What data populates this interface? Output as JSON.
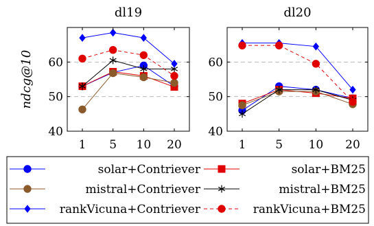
{
  "chart_data": [
    {
      "type": "line",
      "title": "dl19",
      "ylabel": "ndcg@10",
      "xlabel": "",
      "categories": [
        "1",
        "5",
        "10",
        "20"
      ],
      "ylim": [
        40,
        70
      ],
      "yticks": [
        40,
        50,
        60
      ],
      "grid": "horizontal dashed",
      "series": [
        {
          "name": "solar+Contriever",
          "values": [
            53.0,
            57.0,
            59.0,
            53.0
          ],
          "color": "#0000ff",
          "marker": "circle",
          "dash": false
        },
        {
          "name": "solar+BM25",
          "values": [
            53.0,
            57.2,
            56.0,
            52.8
          ],
          "color": "#e00000",
          "marker": "square",
          "dash": false
        },
        {
          "name": "mistral+Contriever",
          "values": [
            46.3,
            56.8,
            55.6,
            54.0
          ],
          "color": "#8b5a2b",
          "marker": "circle",
          "dash": false
        },
        {
          "name": "mistral+BM25",
          "values": [
            53.0,
            60.5,
            58.0,
            58.0
          ],
          "color": "#000000",
          "marker": "star",
          "dash": false
        },
        {
          "name": "rankVicuna+Contriever",
          "values": [
            67.0,
            68.5,
            67.0,
            59.5
          ],
          "color": "#0000ff",
          "marker": "diamond",
          "dash": false
        },
        {
          "name": "rankVicuna+BM25",
          "values": [
            61.0,
            63.5,
            62.0,
            56.0
          ],
          "color": "#e00000",
          "marker": "circle",
          "dash": true
        }
      ]
    },
    {
      "type": "line",
      "title": "dl20",
      "ylabel": "",
      "xlabel": "",
      "categories": [
        "1",
        "5",
        "10",
        "20"
      ],
      "ylim": [
        40,
        70
      ],
      "yticks": [
        40,
        50,
        60
      ],
      "grid": "horizontal dashed",
      "series": [
        {
          "name": "solar+Contriever",
          "values": [
            46.0,
            53.0,
            52.0,
            49.5
          ],
          "color": "#0000ff",
          "marker": "circle",
          "dash": false
        },
        {
          "name": "solar+BM25",
          "values": [
            48.0,
            52.0,
            51.0,
            49.5
          ],
          "color": "#e00000",
          "marker": "square",
          "dash": false
        },
        {
          "name": "mistral+Contriever",
          "values": [
            47.5,
            51.5,
            51.5,
            47.8
          ],
          "color": "#8b5a2b",
          "marker": "circle",
          "dash": false
        },
        {
          "name": "mistral+BM25",
          "values": [
            45.0,
            52.0,
            52.0,
            49.0
          ],
          "color": "#000000",
          "marker": "star",
          "dash": false
        },
        {
          "name": "rankVicuna+Contriever",
          "values": [
            65.5,
            65.5,
            64.5,
            52.0
          ],
          "color": "#0000ff",
          "marker": "diamond",
          "dash": false
        },
        {
          "name": "rankVicuna+BM25",
          "values": [
            64.8,
            64.8,
            59.5,
            48.5
          ],
          "color": "#e00000",
          "marker": "circle",
          "dash": true
        }
      ]
    }
  ],
  "legend": {
    "placement": "bottom",
    "entries": [
      {
        "label": "solar+Contriever",
        "color": "#0000ff",
        "marker": "circle",
        "dash": false
      },
      {
        "label": "solar+BM25",
        "color": "#e00000",
        "marker": "square",
        "dash": false
      },
      {
        "label": "mistral+Contriever",
        "color": "#8b5a2b",
        "marker": "circle",
        "dash": false
      },
      {
        "label": "mistral+BM25",
        "color": "#000000",
        "marker": "star",
        "dash": false
      },
      {
        "label": "rankVicuna+Contriever",
        "color": "#0000ff",
        "marker": "diamond",
        "dash": false
      },
      {
        "label": "rankVicuna+BM25",
        "color": "#e00000",
        "marker": "circle",
        "dash": true
      }
    ]
  }
}
